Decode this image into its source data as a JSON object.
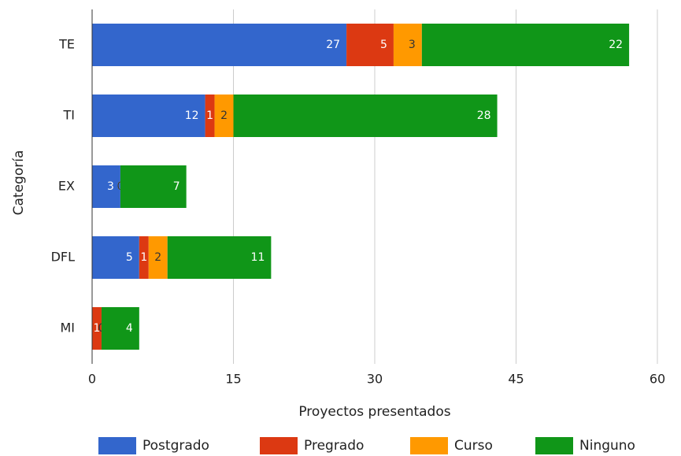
{
  "chart_data": {
    "type": "stacked_bar_horizontal",
    "xlabel": "Proyectos presentados",
    "ylabel": "Categoría",
    "categories": [
      "TE",
      "TI",
      "EX",
      "DFL",
      "MI"
    ],
    "series": [
      {
        "name": "Postgrado",
        "color": "#3366cc",
        "values": [
          27,
          12,
          3,
          5,
          0
        ]
      },
      {
        "name": "Pregrado",
        "color": "#dc3912",
        "values": [
          5,
          1,
          0,
          1,
          1
        ]
      },
      {
        "name": "Curso",
        "color": "#ff9900",
        "values": [
          3,
          2,
          0,
          2,
          0
        ]
      },
      {
        "name": "Ninguno",
        "color": "#109618",
        "values": [
          22,
          28,
          7,
          11,
          4
        ]
      }
    ],
    "xlim": [
      0,
      60
    ],
    "xticks": [
      0,
      15,
      30,
      45,
      60
    ],
    "grid": true,
    "legend": "bottom"
  }
}
